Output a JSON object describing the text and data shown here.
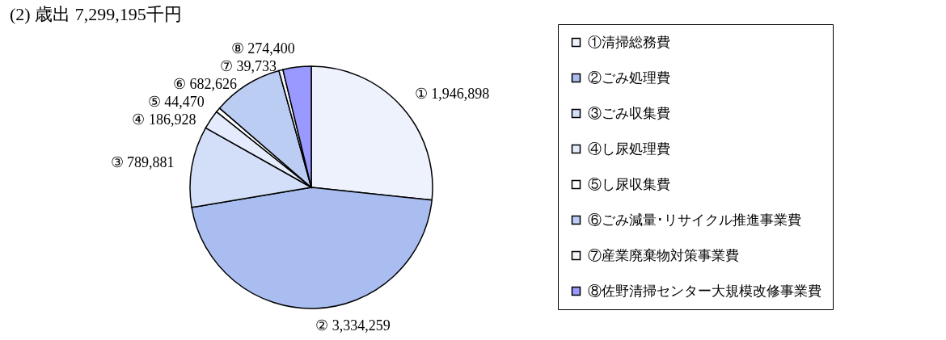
{
  "chart_data": {
    "type": "pie",
    "title": "(2) 歳出  7,299,195千円",
    "categories": [
      "①清掃総務費",
      "②ごみ処理費",
      "③ごみ収集費",
      "④し尿処理費",
      "⑤し尿収集費",
      "⑥ごみ減量･リサイクル推進事業費",
      "⑦産業廃棄物対策事業費",
      "⑧佐野清掃センター大規模改修事業費"
    ],
    "values": [
      1946898,
      3334259,
      789881,
      186928,
      44470,
      682626,
      39733,
      274400
    ],
    "value_labels": [
      "① 1,946,898",
      "② 3,334,259",
      "③ 789,881",
      "④ 186,928",
      "⑤ 44,470",
      "⑥ 682,626",
      "⑦ 39,733",
      "⑧ 274,400"
    ],
    "colors": [
      "#eef2fd",
      "#a9bdf0",
      "#d3dff8",
      "#e4ebfc",
      "#ffffff",
      "#bccdf4",
      "#f4f6fe",
      "#9999ff"
    ],
    "legend": "right"
  }
}
